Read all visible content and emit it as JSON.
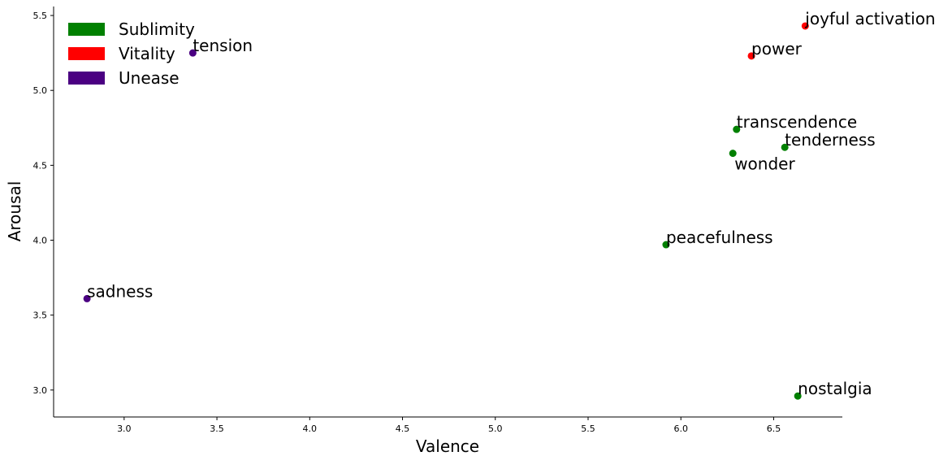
{
  "chart_data": {
    "type": "scatter",
    "xlabel": "Valence",
    "ylabel": "Arousal",
    "xlim": [
      2.62,
      6.87
    ],
    "ylim": [
      2.82,
      5.56
    ],
    "xticks": [
      "3.0",
      "3.5",
      "4.0",
      "4.5",
      "5.0",
      "5.5",
      "6.0",
      "6.5"
    ],
    "yticks": [
      "3.0",
      "3.5",
      "4.0",
      "4.5",
      "5.0",
      "5.5"
    ],
    "grid": false,
    "legend_position": "top-left",
    "series": [
      {
        "name": "Sublimity",
        "color": "#008000",
        "points": [
          {
            "label": "transcendence",
            "x": 6.3,
            "y": 4.74
          },
          {
            "label": "tenderness",
            "x": 6.56,
            "y": 4.62
          },
          {
            "label": "wonder",
            "x": 6.28,
            "y": 4.58
          },
          {
            "label": "peacefulness",
            "x": 5.92,
            "y": 3.97
          },
          {
            "label": "nostalgia",
            "x": 6.63,
            "y": 2.96
          }
        ]
      },
      {
        "name": "Vitality",
        "color": "#ff0000",
        "points": [
          {
            "label": "joyful activation",
            "x": 6.67,
            "y": 5.43
          },
          {
            "label": "power",
            "x": 6.38,
            "y": 5.23
          }
        ]
      },
      {
        "name": "Unease",
        "color": "#4b0082",
        "points": [
          {
            "label": "tension",
            "x": 3.37,
            "y": 5.25
          },
          {
            "label": "sadness",
            "x": 2.8,
            "y": 3.61
          }
        ]
      }
    ]
  }
}
